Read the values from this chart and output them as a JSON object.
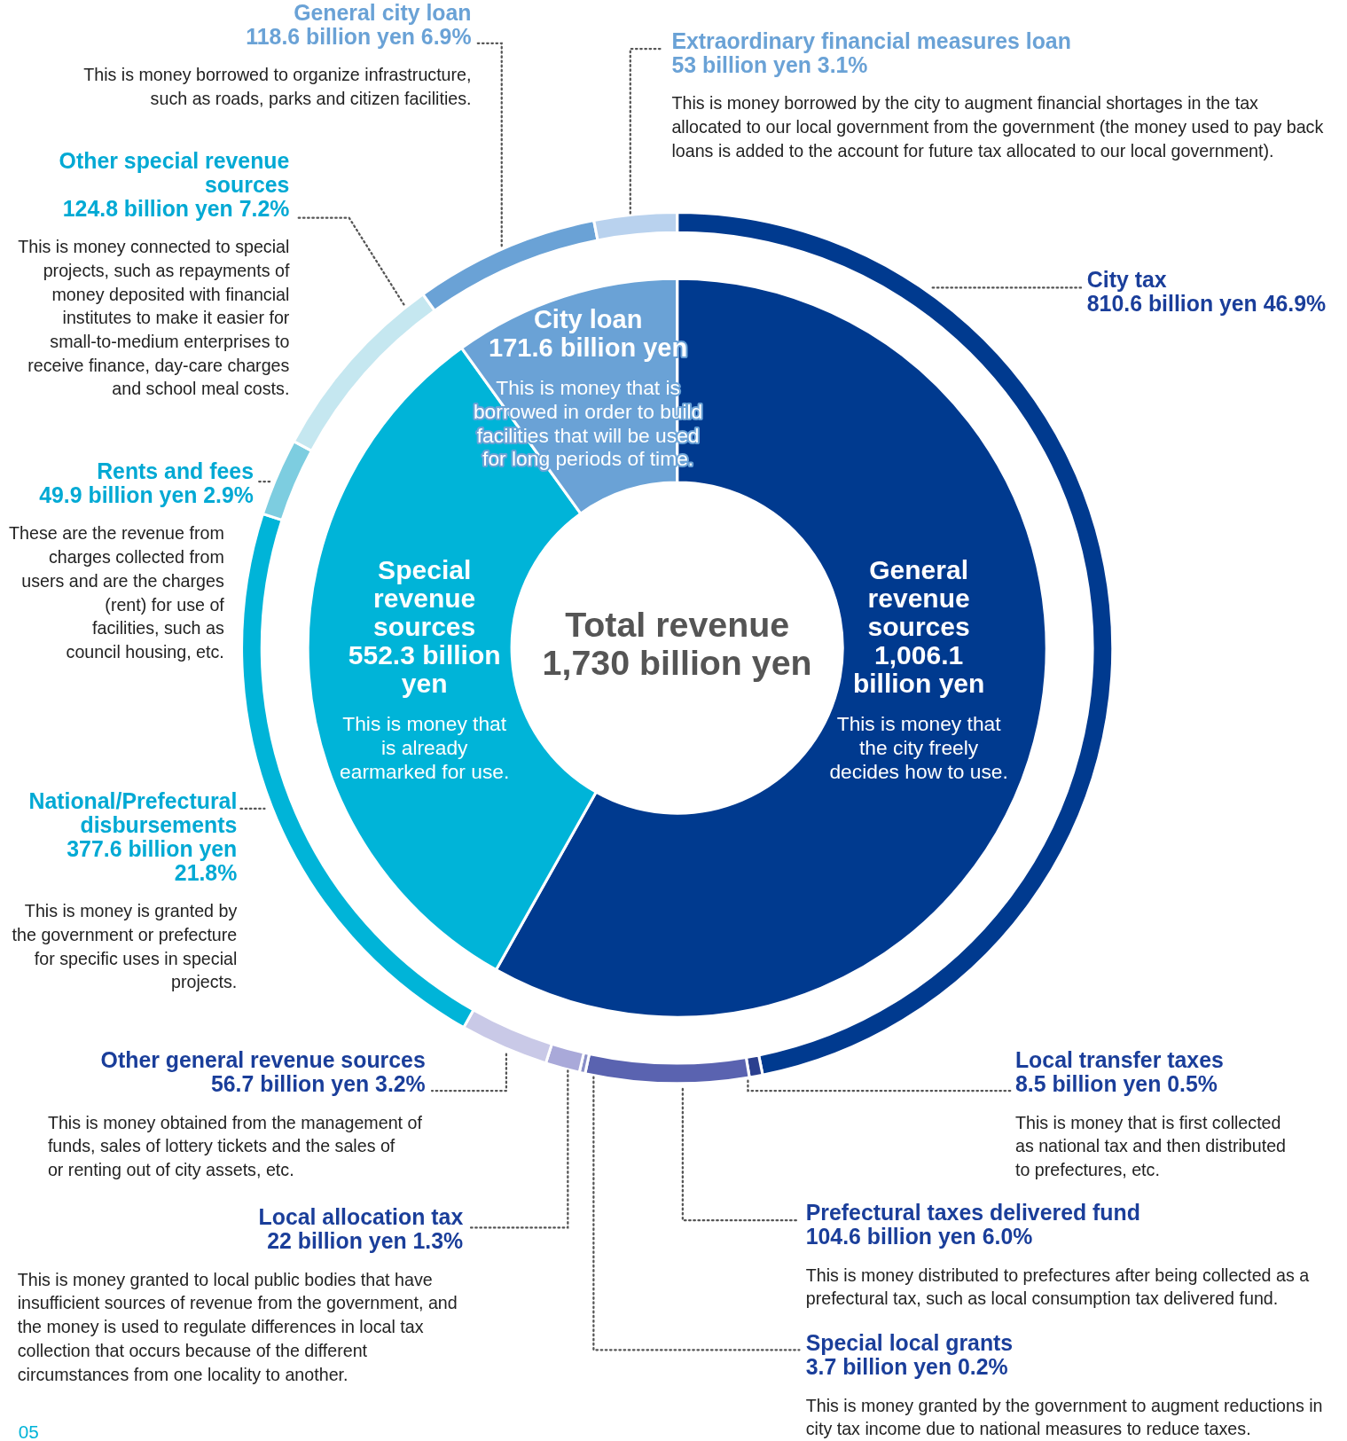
{
  "chart_data": [
    {
      "type": "donut",
      "title": "Total revenue 1,730 billion yen",
      "categories": [
        "General revenue sources",
        "Special revenue sources",
        "City loan"
      ],
      "values": [
        1006.1,
        552.3,
        171.6
      ],
      "colors": [
        "#003a8f",
        "#00b4d8",
        "#6aa2d6"
      ],
      "value_labels": [
        "1,006.1 billion yen",
        "552.3 billion yen",
        "171.6 billion yen"
      ],
      "annotations": [
        {
          "text": "This is money that the city freely decides how to use.",
          "x": "General revenue sources"
        },
        {
          "text": "This is money that is already earmarked for use.",
          "x": "Special revenue sources"
        },
        {
          "text": "This is money that is borrowed in order to build facilities that will be used for long periods of time.",
          "x": "City loan"
        }
      ]
    },
    {
      "type": "donut",
      "categories": [
        "City tax",
        "Local transfer taxes",
        "Prefectural taxes delivered fund",
        "Special local grants",
        "Local allocation tax",
        "Other general revenue sources",
        "National/Prefectural disbursements",
        "Rents and fees",
        "Other special revenue sources",
        "General city loan",
        "Extraordinary financial measures loan"
      ],
      "values": [
        810.6,
        8.5,
        104.6,
        3.7,
        22,
        56.7,
        377.6,
        49.9,
        124.8,
        118.6,
        53
      ],
      "colors": [
        "#003a8f",
        "#2b3f8f",
        "#5a63b0",
        "#8a8fc7",
        "#a9a9d9",
        "#c9c9e7",
        "#00b4d8",
        "#7dcde0",
        "#c5e7f0",
        "#6aa2d6",
        "#b9d2ee"
      ],
      "value_labels": [
        "810.6 billion yen",
        "8.5 billion yen",
        "104.6 billion yen",
        "3.7 billion yen",
        "22 billion yen",
        "56.7 billion yen",
        "377.6 billion yen",
        "49.9 billion yen",
        "124.8 billion yen",
        "118.6 billion yen",
        "53 billion yen"
      ],
      "annotations": [
        {
          "text": "46.9%",
          "x": "City tax"
        },
        {
          "text": "0.5%",
          "x": "Local transfer taxes"
        },
        {
          "text": "This is money that is first collected as national tax and then distributed to prefectures, etc.",
          "x": "Local transfer taxes"
        },
        {
          "text": "6.0%",
          "x": "Prefectural taxes delivered fund"
        },
        {
          "text": "This is money distributed to prefectures after being collected as a prefectural tax, such as local consumption tax delivered fund.",
          "x": "Prefectural taxes delivered fund"
        },
        {
          "text": "0.2%",
          "x": "Special local grants"
        },
        {
          "text": "This is money granted by the government to augment reductions in city tax income due to national measures to reduce taxes.",
          "x": "Special local grants"
        },
        {
          "text": "1.3%",
          "x": "Local allocation tax"
        },
        {
          "text": "This is money granted to local public bodies that have insufficient sources of revenue from the government, and the money is used to regulate differences in local tax collection that occurs because of the different circumstances from one locality to another.",
          "x": "Local allocation tax"
        },
        {
          "text": "3.2%",
          "x": "Other general revenue sources"
        },
        {
          "text": "This is money obtained from the management of funds, sales of lottery tickets and the sales of or renting out of city assets, etc.",
          "x": "Other general revenue sources"
        },
        {
          "text": "21.8%",
          "x": "National/Prefectural disbursements"
        },
        {
          "text": "This is money is granted by the government or prefecture for specific uses in special projects.",
          "x": "National/Prefectural disbursements"
        },
        {
          "text": "2.9%",
          "x": "Rents and fees"
        },
        {
          "text": "These are the revenue from charges collected from users and are the charges (rent) for use of facilities, such as council housing, etc.",
          "x": "Rents and fees"
        },
        {
          "text": "7.2%",
          "x": "Other special revenue sources"
        },
        {
          "text": "This is money connected to special projects, such as repayments of money deposited with financial institutes to make it easier for small-to-medium enterprises to receive finance, day-care charges and school meal costs.",
          "x": "Other special revenue sources"
        },
        {
          "text": "6.9%",
          "x": "General city loan"
        },
        {
          "text": "This is money borrowed to organize infrastructure, such as roads, parks and citizen facilities.",
          "x": "General city loan"
        },
        {
          "text": "3.1%",
          "x": "Extraordinary financial measures loan"
        },
        {
          "text": "This is money borrowed by the city to augment financial shortages in the tax allocated to our local government from the government (the money used to pay back loans is added to the account for future tax allocated to our local government).",
          "x": "Extraordinary financial measures loan"
        },
        "05"
      ]
    }
  ]
}
